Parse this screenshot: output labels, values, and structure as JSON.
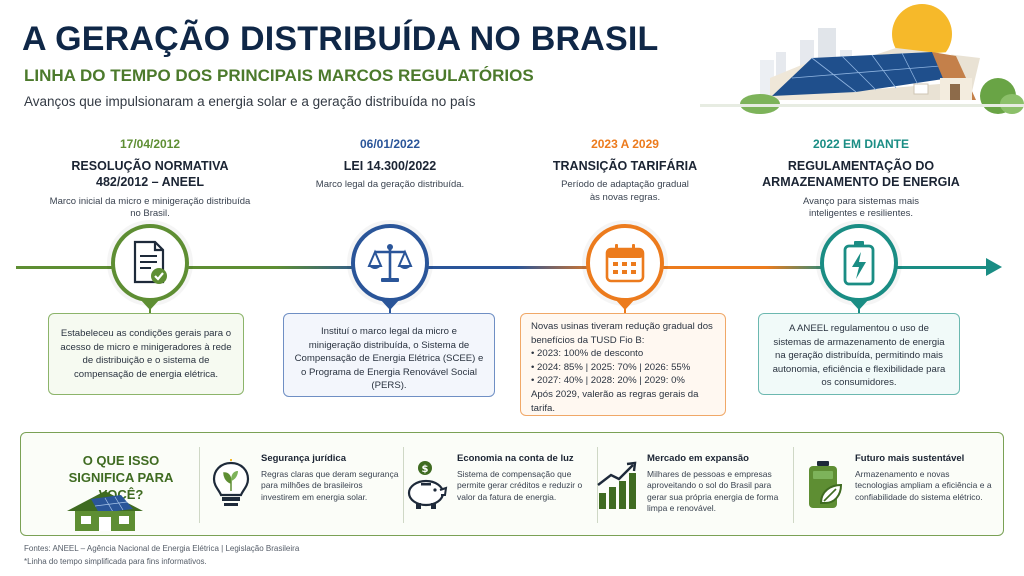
{
  "header": {
    "title": "A GERAÇÃO DISTRIBUÍDA NO BRASIL",
    "subtitle": "LINHA DO TEMPO DOS PRINCIPAIS MARCOS REGULATÓRIOS",
    "tagline": "Avanços que impulsionaram a energia solar e a geração distribuída no país"
  },
  "colors": {
    "green": "#5e8e33",
    "blue": "#2a5599",
    "orange": "#ec7b1d",
    "teal": "#1a8d84",
    "navy": "#0f2747"
  },
  "milestones": [
    {
      "date": "17/04/2012",
      "title": "RESOLUÇÃO NORMATIVA 482/2012 – ANEEL",
      "desc": "Marco inicial da micro e minigeração distribuída no Brasil.",
      "icon": "document-check-icon",
      "box": "Estabeleceu as condições gerais para o acesso de micro e minigeradores à rede de distribuição e o sistema de compensação de energia elétrica."
    },
    {
      "date": "06/01/2022",
      "title": "LEI 14.300/2022",
      "desc": "Marco legal da geração distribuída.",
      "icon": "scales-icon",
      "box": "Instituí o marco legal da micro e minigeração distribuída, o Sistema de Compensação de Energia Elétrica (SCEE) e o Programa de Energia Renovável Social (PERS)."
    },
    {
      "date": "2023 A 2029",
      "title": "TRANSIÇÃO TARIFÁRIA",
      "desc": "Período de adaptação gradual às novas regras.",
      "icon": "calendar-icon",
      "box_intro": "Novas usinas tiveram redução gradual dos benefícios da TUSD Fio B:",
      "box_items": [
        "2023: 100% de desconto",
        "2024: 85% | 2025: 70% | 2026: 55%",
        "2027: 40% | 2028: 20% | 2029: 0%"
      ],
      "box_outro": "Após 2029, valerão as regras gerais da tarifa."
    },
    {
      "date": "2022 EM DIANTE",
      "title": "REGULAMENTAÇÃO DO ARMAZENAMENTO DE ENERGIA",
      "desc": "Avanço para sistemas mais inteligentes e resilientes.",
      "icon": "battery-bolt-icon",
      "box": "A ANEEL regulamentou o uso de sistemas de armazenamento de energia na geração distribuída, permitindo mais autonomia, eficiência e flexibilidade para os consumidores."
    }
  ],
  "bottom": {
    "question": "O QUE ISSO SIGNIFICA PARA VOCÊ?",
    "items": [
      {
        "title": "Segurança jurídica",
        "desc": "Regras claras que deram segurança para milhões de brasileiros investirem em energia solar.",
        "icon": "lightbulb-leaf-icon"
      },
      {
        "title": "Economia na conta de luz",
        "desc": "Sistema de compensação que permite gerar créditos e reduzir o valor da fatura de energia.",
        "icon": "piggy-bank-icon"
      },
      {
        "title": "Mercado em expansão",
        "desc": "Milhares de pessoas e empresas aproveitando o sol do Brasil para gerar sua própria energia de forma limpa e renovável.",
        "icon": "growth-chart-icon"
      },
      {
        "title": "Futuro mais sustentável",
        "desc": "Armazenamento e novas tecnologias ampliam a eficiência e a confiabilidade do sistema elétrico.",
        "icon": "battery-leaf-icon"
      }
    ]
  },
  "footer": {
    "sources": "Fontes: ANEEL – Agência Nacional de Energia Elétrica | Legislação Brasileira",
    "note": "*Linha do tempo simplificada para fins informativos."
  }
}
